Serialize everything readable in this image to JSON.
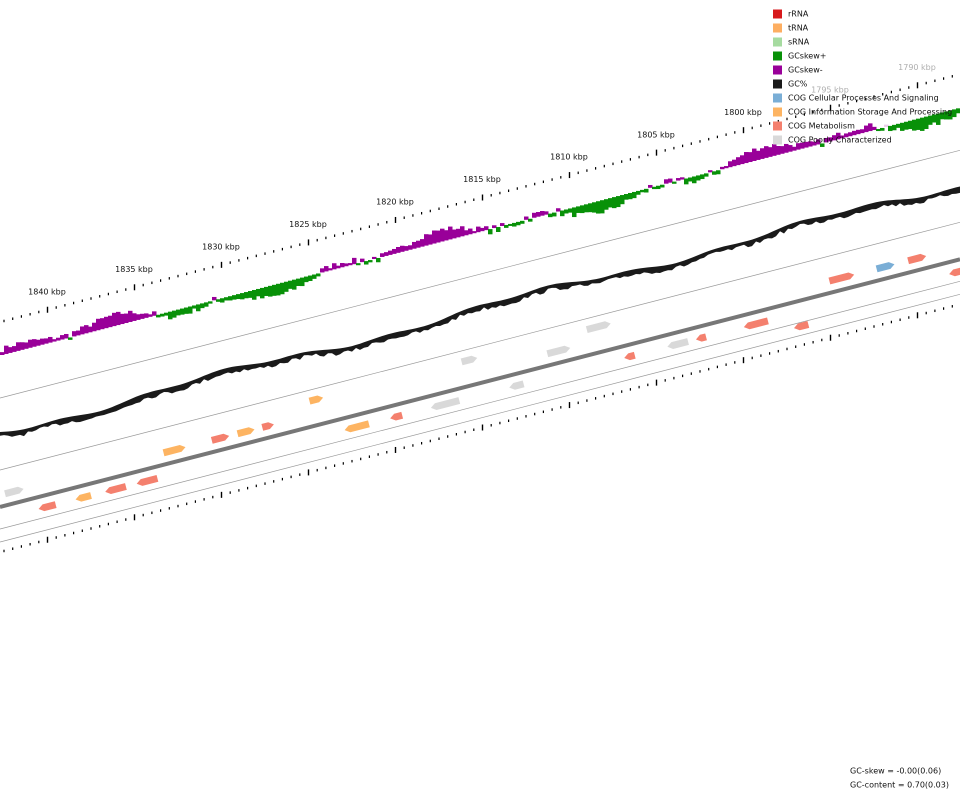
{
  "legend": [
    {
      "label": "rRNA",
      "color": "#d7191c"
    },
    {
      "label": "tRNA",
      "color": "#fdae61"
    },
    {
      "label": "sRNA",
      "color": "#a6dba0"
    },
    {
      "label": "GCskew+",
      "color": "#089108"
    },
    {
      "label": "GCskew-",
      "color": "#990099"
    },
    {
      "label": "GC%",
      "color": "#1a1a1a"
    },
    {
      "label": "COG Cellular Processes And Signaling",
      "color": "#7aaed6"
    },
    {
      "label": "COG Information Storage And Processing",
      "color": "#fdb462"
    },
    {
      "label": "COG Metabolism",
      "color": "#f4806e"
    },
    {
      "label": "COG Poorly Characterized",
      "color": "#d9d9d9"
    }
  ],
  "ruler_labels": [
    "1840 kbp",
    "1835 kbp",
    "1830 kbp",
    "1825 kbp",
    "1820 kbp",
    "1815 kbp",
    "1810 kbp",
    "1805 kbp",
    "1800 kbp",
    "1795 kbp",
    "1790 kbp"
  ],
  "footer": [
    "GC-skew = -0.00(0.06)",
    "GC-content = 0.70(0.03)"
  ]
}
